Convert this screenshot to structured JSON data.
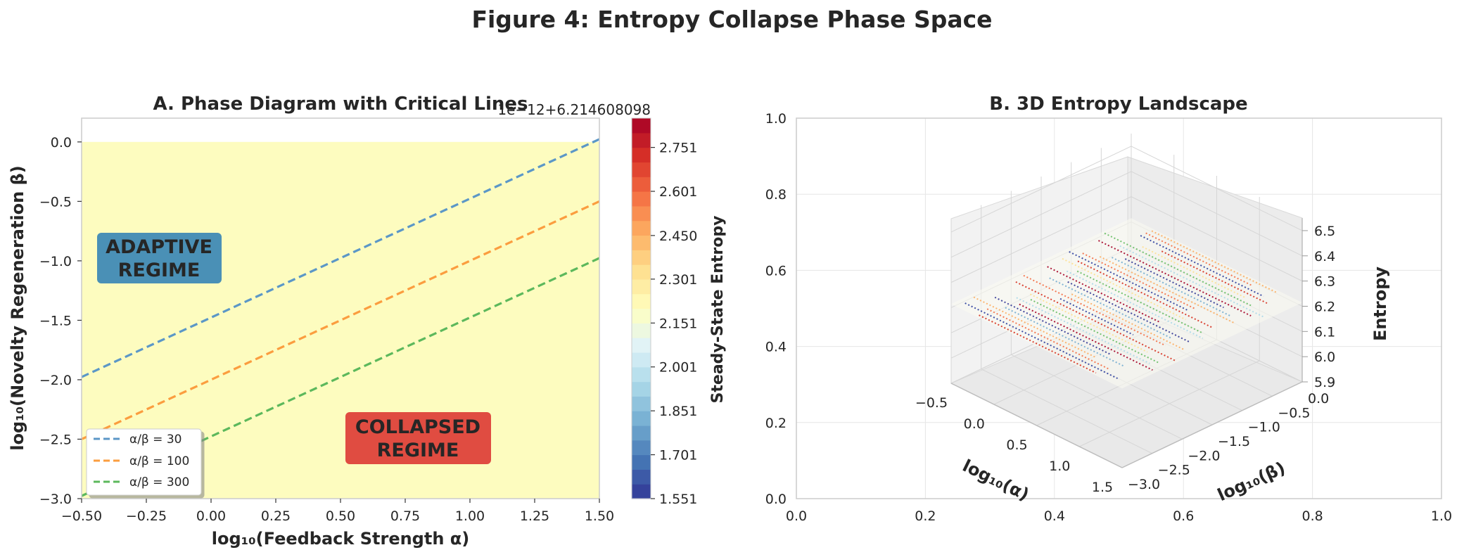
{
  "figure_title": "Figure 4: Entropy Collapse Phase Space",
  "colors": {
    "background_field": "#fdfcbf",
    "line_30": "#5b97c7",
    "line_100": "#fb9d3f",
    "line_300": "#5cb85c",
    "adaptive_box": "#3b87b5",
    "collapsed_box": "#dd3d36",
    "grid": "#e6e6e6",
    "axis": "#cccccc"
  },
  "chart_data": [
    {
      "type": "line",
      "panel": "A",
      "title": "A. Phase Diagram with Critical Lines",
      "xlabel": "log₁₀(Feedback Strength α)",
      "ylabel": "log₁₀(Novelty Regeneration β)",
      "xlim": [
        -0.5,
        1.5
      ],
      "ylim": [
        -3.0,
        0.2
      ],
      "xticks": [
        "−0.50",
        "−0.25",
        "0.00",
        "0.25",
        "0.50",
        "0.75",
        "1.00",
        "1.25",
        "1.50"
      ],
      "yticks": [
        "−3.0",
        "−2.5",
        "−2.0",
        "−1.5",
        "−1.0",
        "−0.5",
        "0.0"
      ],
      "filled_region": {
        "x": [
          -0.5,
          1.5
        ],
        "y": [
          -3.0,
          0.0
        ]
      },
      "series": [
        {
          "name": "α/β = 30",
          "ratio": 30,
          "x": [
            -0.5,
            1.5
          ],
          "y": [
            -1.977,
            0.023
          ]
        },
        {
          "name": "α/β = 100",
          "ratio": 100,
          "x": [
            -0.5,
            1.5
          ],
          "y": [
            -2.5,
            -0.5
          ]
        },
        {
          "name": "α/β = 300",
          "ratio": 300,
          "x": [
            -0.5,
            1.5
          ],
          "y": [
            -2.977,
            -0.977
          ]
        }
      ],
      "annotations": [
        {
          "text": [
            "ADAPTIVE",
            "REGIME"
          ],
          "x": -0.19,
          "y": -1.0
        },
        {
          "text": [
            "COLLAPSED",
            "REGIME"
          ],
          "x": 0.78,
          "y": -2.5
        }
      ],
      "legend_position": "lower-left",
      "colorbar": {
        "label": "Steady-State Entropy",
        "offset_text": "1e−12+6.214608098",
        "range": [
          1.551,
          2.851
        ],
        "ticks": [
          "1.551",
          "1.701",
          "1.851",
          "2.001",
          "2.151",
          "2.301",
          "2.450",
          "2.601",
          "2.751"
        ],
        "levels": 26
      }
    },
    {
      "type": "scatter",
      "panel": "B",
      "title": "B. 3D Entropy Landscape",
      "outer_xticks": [
        "0.0",
        "0.2",
        "0.4",
        "0.6",
        "0.8",
        "1.0"
      ],
      "outer_yticks": [
        "0.0",
        "0.2",
        "0.4",
        "0.6",
        "0.8",
        "1.0"
      ],
      "xlabel": "log₁₀(α)",
      "ylabel": "log₁₀(β)",
      "zlabel": "Entropy",
      "xticks": [
        "−0.5",
        "0.0",
        "0.5",
        "1.0",
        "1.5"
      ],
      "yticks": [
        "0.0",
        "−0.5",
        "−1.0",
        "−1.5",
        "−2.0",
        "−2.5",
        "−3.0"
      ],
      "zticks": [
        "6.5",
        "6.4",
        "6.3",
        "6.2",
        "6.1",
        "6.0",
        "5.9"
      ],
      "xlim": [
        -0.5,
        1.5
      ],
      "ylim": [
        -3.0,
        0.0
      ],
      "zlim": [
        5.9,
        6.55
      ],
      "surface_z": 6.2146
    }
  ]
}
